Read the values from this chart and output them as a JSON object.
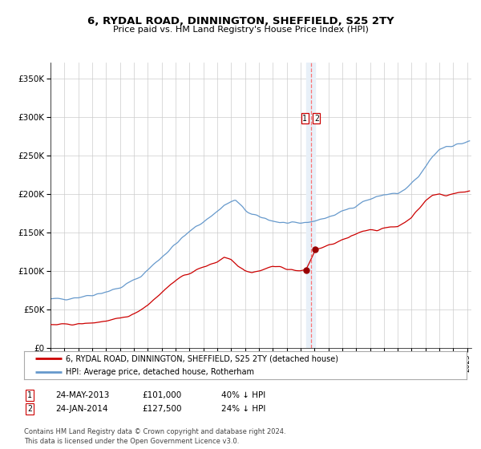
{
  "title": "6, RYDAL ROAD, DINNINGTON, SHEFFIELD, S25 2TY",
  "subtitle": "Price paid vs. HM Land Registry's House Price Index (HPI)",
  "ylabel_ticks": [
    "£0",
    "£50K",
    "£100K",
    "£150K",
    "£200K",
    "£250K",
    "£300K",
    "£350K"
  ],
  "ytick_values": [
    0,
    50000,
    100000,
    150000,
    200000,
    250000,
    300000,
    350000
  ],
  "ylim": [
    0,
    370000
  ],
  "xlim_start": 1995.0,
  "xlim_end": 2025.3,
  "legend_line1": "6, RYDAL ROAD, DINNINGTON, SHEFFIELD, S25 2TY (detached house)",
  "legend_line2": "HPI: Average price, detached house, Rotherham",
  "sale1_date": "24-MAY-2013",
  "sale1_price": "£101,000",
  "sale1_info": "40% ↓ HPI",
  "sale1_year": 2013.39,
  "sale1_value": 101000,
  "sale2_date": "24-JAN-2014",
  "sale2_price": "£127,500",
  "sale2_info": "24% ↓ HPI",
  "sale2_year": 2014.07,
  "sale2_value": 127500,
  "vline_x": 2013.75,
  "vband_x1": 2013.39,
  "vband_x2": 2014.07,
  "hpi_color": "#6699cc",
  "price_color": "#cc0000",
  "dot_color": "#990000",
  "vline_color": "#ff6666",
  "vband_color": "#e8f0f8",
  "footer": "Contains HM Land Registry data © Crown copyright and database right 2024.\nThis data is licensed under the Open Government Licence v3.0.",
  "background_color": "#ffffff",
  "grid_color": "#cccccc"
}
